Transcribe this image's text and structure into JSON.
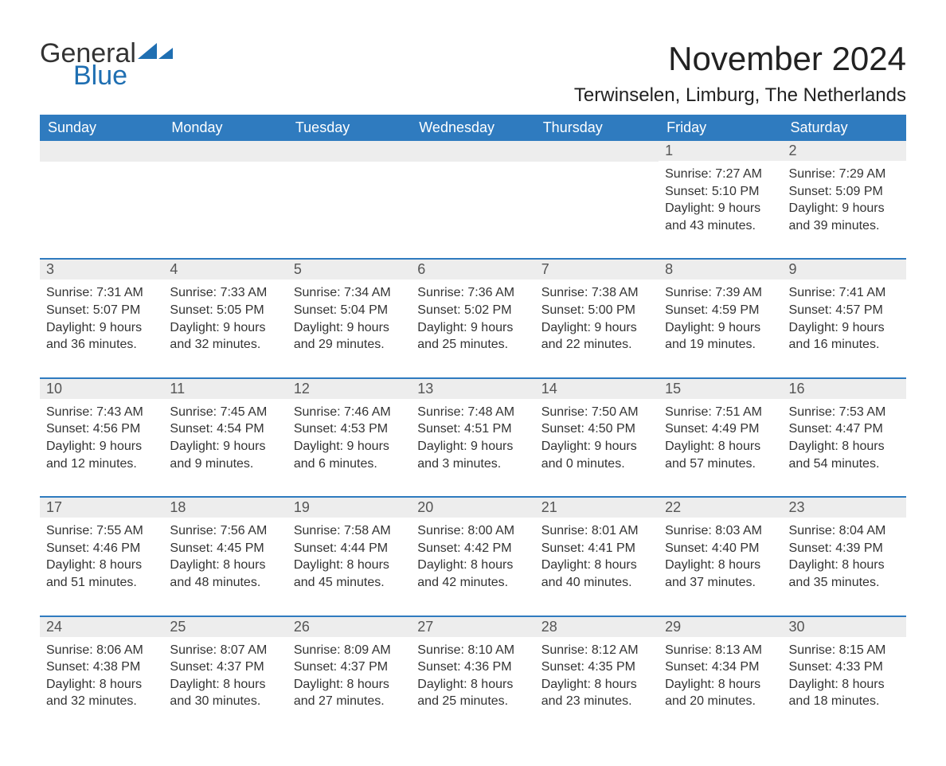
{
  "logo": {
    "word1": "General",
    "word2": "Blue",
    "icon_color": "#1f6fb2",
    "text_color_general": "#333333",
    "text_color_blue": "#1f6fb2"
  },
  "title": "November 2024",
  "location": "Terwinselen, Limburg, The Netherlands",
  "colors": {
    "header_bg": "#2f7bbf",
    "header_text": "#ffffff",
    "daynum_bg": "#ededed",
    "daynum_text": "#555555",
    "body_text": "#333333",
    "row_border": "#2f7bbf",
    "page_bg": "#ffffff"
  },
  "font": {
    "family": "Arial, Helvetica, sans-serif",
    "title_size_pt": 32,
    "location_size_pt": 18,
    "header_size_pt": 14,
    "daynum_size_pt": 14,
    "body_size_pt": 12
  },
  "day_headers": [
    "Sunday",
    "Monday",
    "Tuesday",
    "Wednesday",
    "Thursday",
    "Friday",
    "Saturday"
  ],
  "weeks": [
    [
      {
        "day": "",
        "sunrise": "",
        "sunset": "",
        "daylight1": "",
        "daylight2": ""
      },
      {
        "day": "",
        "sunrise": "",
        "sunset": "",
        "daylight1": "",
        "daylight2": ""
      },
      {
        "day": "",
        "sunrise": "",
        "sunset": "",
        "daylight1": "",
        "daylight2": ""
      },
      {
        "day": "",
        "sunrise": "",
        "sunset": "",
        "daylight1": "",
        "daylight2": ""
      },
      {
        "day": "",
        "sunrise": "",
        "sunset": "",
        "daylight1": "",
        "daylight2": ""
      },
      {
        "day": "1",
        "sunrise": "Sunrise: 7:27 AM",
        "sunset": "Sunset: 5:10 PM",
        "daylight1": "Daylight: 9 hours",
        "daylight2": "and 43 minutes."
      },
      {
        "day": "2",
        "sunrise": "Sunrise: 7:29 AM",
        "sunset": "Sunset: 5:09 PM",
        "daylight1": "Daylight: 9 hours",
        "daylight2": "and 39 minutes."
      }
    ],
    [
      {
        "day": "3",
        "sunrise": "Sunrise: 7:31 AM",
        "sunset": "Sunset: 5:07 PM",
        "daylight1": "Daylight: 9 hours",
        "daylight2": "and 36 minutes."
      },
      {
        "day": "4",
        "sunrise": "Sunrise: 7:33 AM",
        "sunset": "Sunset: 5:05 PM",
        "daylight1": "Daylight: 9 hours",
        "daylight2": "and 32 minutes."
      },
      {
        "day": "5",
        "sunrise": "Sunrise: 7:34 AM",
        "sunset": "Sunset: 5:04 PM",
        "daylight1": "Daylight: 9 hours",
        "daylight2": "and 29 minutes."
      },
      {
        "day": "6",
        "sunrise": "Sunrise: 7:36 AM",
        "sunset": "Sunset: 5:02 PM",
        "daylight1": "Daylight: 9 hours",
        "daylight2": "and 25 minutes."
      },
      {
        "day": "7",
        "sunrise": "Sunrise: 7:38 AM",
        "sunset": "Sunset: 5:00 PM",
        "daylight1": "Daylight: 9 hours",
        "daylight2": "and 22 minutes."
      },
      {
        "day": "8",
        "sunrise": "Sunrise: 7:39 AM",
        "sunset": "Sunset: 4:59 PM",
        "daylight1": "Daylight: 9 hours",
        "daylight2": "and 19 minutes."
      },
      {
        "day": "9",
        "sunrise": "Sunrise: 7:41 AM",
        "sunset": "Sunset: 4:57 PM",
        "daylight1": "Daylight: 9 hours",
        "daylight2": "and 16 minutes."
      }
    ],
    [
      {
        "day": "10",
        "sunrise": "Sunrise: 7:43 AM",
        "sunset": "Sunset: 4:56 PM",
        "daylight1": "Daylight: 9 hours",
        "daylight2": "and 12 minutes."
      },
      {
        "day": "11",
        "sunrise": "Sunrise: 7:45 AM",
        "sunset": "Sunset: 4:54 PM",
        "daylight1": "Daylight: 9 hours",
        "daylight2": "and 9 minutes."
      },
      {
        "day": "12",
        "sunrise": "Sunrise: 7:46 AM",
        "sunset": "Sunset: 4:53 PM",
        "daylight1": "Daylight: 9 hours",
        "daylight2": "and 6 minutes."
      },
      {
        "day": "13",
        "sunrise": "Sunrise: 7:48 AM",
        "sunset": "Sunset: 4:51 PM",
        "daylight1": "Daylight: 9 hours",
        "daylight2": "and 3 minutes."
      },
      {
        "day": "14",
        "sunrise": "Sunrise: 7:50 AM",
        "sunset": "Sunset: 4:50 PM",
        "daylight1": "Daylight: 9 hours",
        "daylight2": "and 0 minutes."
      },
      {
        "day": "15",
        "sunrise": "Sunrise: 7:51 AM",
        "sunset": "Sunset: 4:49 PM",
        "daylight1": "Daylight: 8 hours",
        "daylight2": "and 57 minutes."
      },
      {
        "day": "16",
        "sunrise": "Sunrise: 7:53 AM",
        "sunset": "Sunset: 4:47 PM",
        "daylight1": "Daylight: 8 hours",
        "daylight2": "and 54 minutes."
      }
    ],
    [
      {
        "day": "17",
        "sunrise": "Sunrise: 7:55 AM",
        "sunset": "Sunset: 4:46 PM",
        "daylight1": "Daylight: 8 hours",
        "daylight2": "and 51 minutes."
      },
      {
        "day": "18",
        "sunrise": "Sunrise: 7:56 AM",
        "sunset": "Sunset: 4:45 PM",
        "daylight1": "Daylight: 8 hours",
        "daylight2": "and 48 minutes."
      },
      {
        "day": "19",
        "sunrise": "Sunrise: 7:58 AM",
        "sunset": "Sunset: 4:44 PM",
        "daylight1": "Daylight: 8 hours",
        "daylight2": "and 45 minutes."
      },
      {
        "day": "20",
        "sunrise": "Sunrise: 8:00 AM",
        "sunset": "Sunset: 4:42 PM",
        "daylight1": "Daylight: 8 hours",
        "daylight2": "and 42 minutes."
      },
      {
        "day": "21",
        "sunrise": "Sunrise: 8:01 AM",
        "sunset": "Sunset: 4:41 PM",
        "daylight1": "Daylight: 8 hours",
        "daylight2": "and 40 minutes."
      },
      {
        "day": "22",
        "sunrise": "Sunrise: 8:03 AM",
        "sunset": "Sunset: 4:40 PM",
        "daylight1": "Daylight: 8 hours",
        "daylight2": "and 37 minutes."
      },
      {
        "day": "23",
        "sunrise": "Sunrise: 8:04 AM",
        "sunset": "Sunset: 4:39 PM",
        "daylight1": "Daylight: 8 hours",
        "daylight2": "and 35 minutes."
      }
    ],
    [
      {
        "day": "24",
        "sunrise": "Sunrise: 8:06 AM",
        "sunset": "Sunset: 4:38 PM",
        "daylight1": "Daylight: 8 hours",
        "daylight2": "and 32 minutes."
      },
      {
        "day": "25",
        "sunrise": "Sunrise: 8:07 AM",
        "sunset": "Sunset: 4:37 PM",
        "daylight1": "Daylight: 8 hours",
        "daylight2": "and 30 minutes."
      },
      {
        "day": "26",
        "sunrise": "Sunrise: 8:09 AM",
        "sunset": "Sunset: 4:37 PM",
        "daylight1": "Daylight: 8 hours",
        "daylight2": "and 27 minutes."
      },
      {
        "day": "27",
        "sunrise": "Sunrise: 8:10 AM",
        "sunset": "Sunset: 4:36 PM",
        "daylight1": "Daylight: 8 hours",
        "daylight2": "and 25 minutes."
      },
      {
        "day": "28",
        "sunrise": "Sunrise: 8:12 AM",
        "sunset": "Sunset: 4:35 PM",
        "daylight1": "Daylight: 8 hours",
        "daylight2": "and 23 minutes."
      },
      {
        "day": "29",
        "sunrise": "Sunrise: 8:13 AM",
        "sunset": "Sunset: 4:34 PM",
        "daylight1": "Daylight: 8 hours",
        "daylight2": "and 20 minutes."
      },
      {
        "day": "30",
        "sunrise": "Sunrise: 8:15 AM",
        "sunset": "Sunset: 4:33 PM",
        "daylight1": "Daylight: 8 hours",
        "daylight2": "and 18 minutes."
      }
    ]
  ]
}
